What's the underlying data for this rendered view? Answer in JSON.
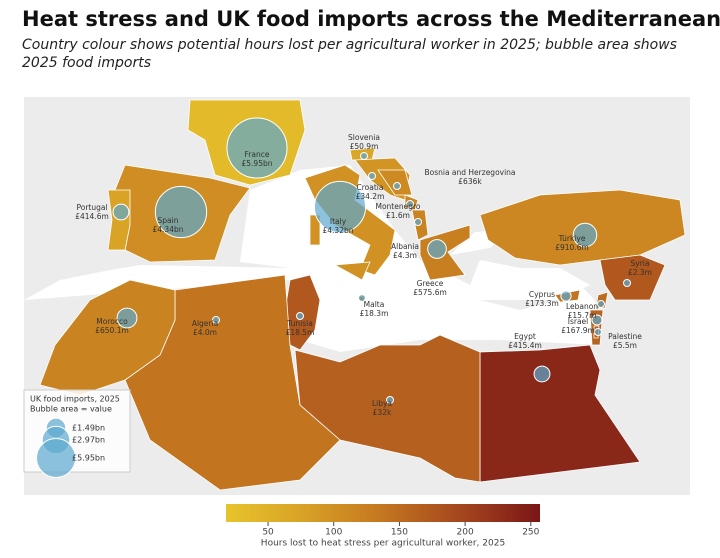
{
  "chart_data": {
    "type": "bubble-map",
    "title": "Heat stress and UK food imports across the Mediterranean",
    "subtitle": "Country colour shows potential hours lost per agricultural worker in 2025; bubble area shows 2025 food imports",
    "categories": [
      "France",
      "Spain",
      "Portugal",
      "Italy",
      "Slovenia",
      "Croatia",
      "Bosnia and Herzegovina",
      "Montenegro",
      "Albania",
      "Greece",
      "Türkiye",
      "Syria",
      "Cyprus",
      "Lebanon",
      "Israel",
      "Palestine",
      "Egypt",
      "Libya",
      "Malta",
      "Tunisia",
      "Algeria",
      "Morocco"
    ],
    "values": [
      5950000000,
      4340000000,
      414600000,
      4320000000,
      50900000,
      34200000,
      636000,
      1600000,
      4300000,
      575600000,
      910600000,
      2300000,
      173300000,
      15700000,
      167900000,
      5500000,
      415400000,
      32000,
      18300000,
      18500000,
      4000000,
      650100000
    ],
    "value_labels": [
      "£5.95bn",
      "£4.34bn",
      "£414.6m",
      "£4.32bn",
      "£50.9m",
      "£34.2m",
      "£636k",
      "£1.6m",
      "£4.3m",
      "£575.6m",
      "£910.6m",
      "£2.3m",
      "£173.3m",
      "£15.7m",
      "£167.9m",
      "£5.5m",
      "£415.4m",
      "£32k",
      "£18.3m",
      "£18.5m",
      "£4.0m",
      "£650.1m"
    ],
    "hours": [
      35,
      105,
      75,
      100,
      70,
      95,
      110,
      115,
      120,
      125,
      115,
      175,
      140,
      150,
      160,
      165,
      235,
      165,
      130,
      175,
      140,
      120
    ],
    "bubble_color": "#5ba8cf",
    "legend": {
      "title": "UK food imports, 2025",
      "subtitle": "Bubble area = value",
      "values": [
        1490000000,
        2970000000,
        5950000000
      ],
      "value_labels": [
        "£1.49bn",
        "£2.97bn",
        "£5.95bn"
      ]
    },
    "colorbar": {
      "label": "Hours lost to heat stress per agricultural worker, 2025",
      "clim": [
        18,
        257
      ],
      "ticks": [
        50,
        100,
        150,
        200,
        250
      ],
      "colormap": [
        "#e7c42b",
        "#d8a126",
        "#c4761f",
        "#a4461e",
        "#7a1616"
      ]
    }
  }
}
